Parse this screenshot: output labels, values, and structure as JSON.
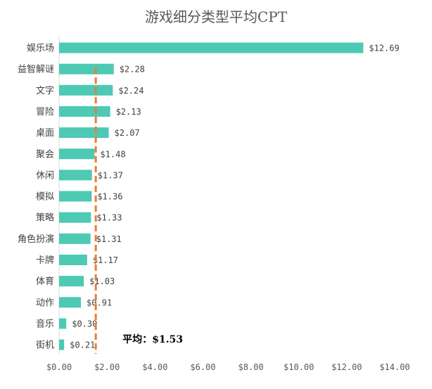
{
  "chart_data": {
    "type": "bar",
    "orientation": "horizontal",
    "title": "游戏细分类型平均CPT",
    "categories": [
      "娱乐场",
      "益智解谜",
      "文字",
      "冒险",
      "桌面",
      "聚会",
      "休闲",
      "模拟",
      "策略",
      "角色扮演",
      "卡牌",
      "体育",
      "动作",
      "音乐",
      "街机"
    ],
    "values": [
      12.69,
      2.28,
      2.24,
      2.13,
      2.07,
      1.48,
      1.37,
      1.36,
      1.33,
      1.31,
      1.17,
      1.03,
      0.91,
      0.3,
      0.21
    ],
    "value_labels": [
      "$12.69",
      "$2.28",
      "$2.24",
      "$2.13",
      "$2.07",
      "$1.48",
      "$1.37",
      "$1.36",
      "$1.33",
      "$1.31",
      "$1.17",
      "$1.03",
      "$0.91",
      "$0.30",
      "$0.21"
    ],
    "x_ticks": [
      0,
      2,
      4,
      6,
      8,
      10,
      12,
      14
    ],
    "x_tick_labels": [
      "$0.00",
      "$2.00",
      "$4.00",
      "$6.00",
      "$8.00",
      "$10.00",
      "$12.00",
      "$14.00"
    ],
    "xlim": [
      0,
      14
    ],
    "grid": false,
    "average": {
      "value": 1.53,
      "label": "平均：$1.53"
    },
    "colors": {
      "bar": "#4DC9B4",
      "average_line": "#ED7D31"
    }
  }
}
